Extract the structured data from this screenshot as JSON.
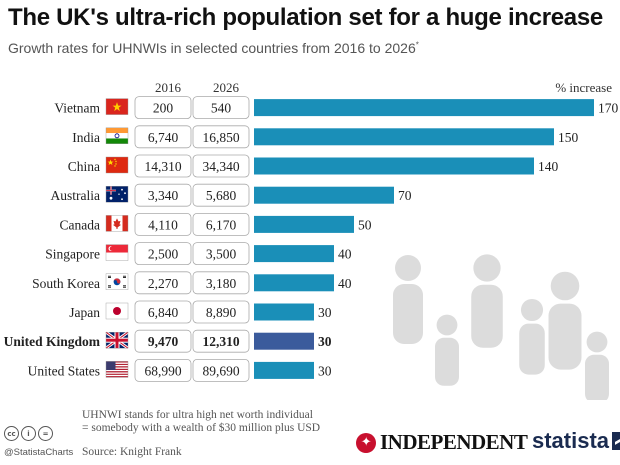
{
  "header": {
    "title": "The UK's ultra-rich population set for a huge increase",
    "subtitle": "Growth rates for UHNWIs in selected countries from 2016 to 2026",
    "subtitle_mark": "*"
  },
  "columns": {
    "y2016": "2016",
    "y2026": "2026",
    "pct": "% increase"
  },
  "colors": {
    "bar": "#1a8fb8",
    "highlight": "#3b5b9c"
  },
  "chart_data": {
    "type": "bar",
    "orientation": "horizontal",
    "title": "The UK's ultra-rich population set for a huge increase",
    "subtitle": "Growth rates for UHNWIs in selected countries from 2016 to 2026*",
    "xlabel": "% increase",
    "ylabel": "",
    "xlim": [
      0,
      170
    ],
    "categories": [
      "Vietnam",
      "India",
      "China",
      "Australia",
      "Canada",
      "Singapore",
      "South Korea",
      "Japan",
      "United Kingdom",
      "United States"
    ],
    "values": [
      170,
      150,
      140,
      70,
      50,
      40,
      40,
      30,
      30,
      30
    ],
    "value_labels": [
      "170",
      "150",
      "140",
      "70",
      "50",
      "40",
      "40",
      "30",
      "30",
      "30"
    ],
    "col_2016": [
      "200",
      "6,740",
      "14,310",
      "3,340",
      "4,110",
      "2,500",
      "2,270",
      "6,840",
      "9,470",
      "68,990"
    ],
    "col_2026": [
      "540",
      "16,850",
      "34,340",
      "5,680",
      "6,170",
      "3,500",
      "3,180",
      "8,890",
      "12,310",
      "89,690"
    ],
    "flags": [
      "vietnam",
      "india",
      "china",
      "australia",
      "canada",
      "singapore",
      "south-korea",
      "japan",
      "united-kingdom",
      "united-states"
    ],
    "highlight": "United Kingdom",
    "grid": false
  },
  "footer": {
    "note_line1": "UHNWI stands for ultra high net worth individual",
    "note_line2": "= somebody with a wealth of $30 million plus USD",
    "source": "Source: Knight Frank",
    "handle": "@StatistaCharts",
    "cc": [
      "cc",
      "i",
      "="
    ],
    "independent": "INDEPENDENT",
    "independent_mark": "✦",
    "statista": "statista"
  }
}
